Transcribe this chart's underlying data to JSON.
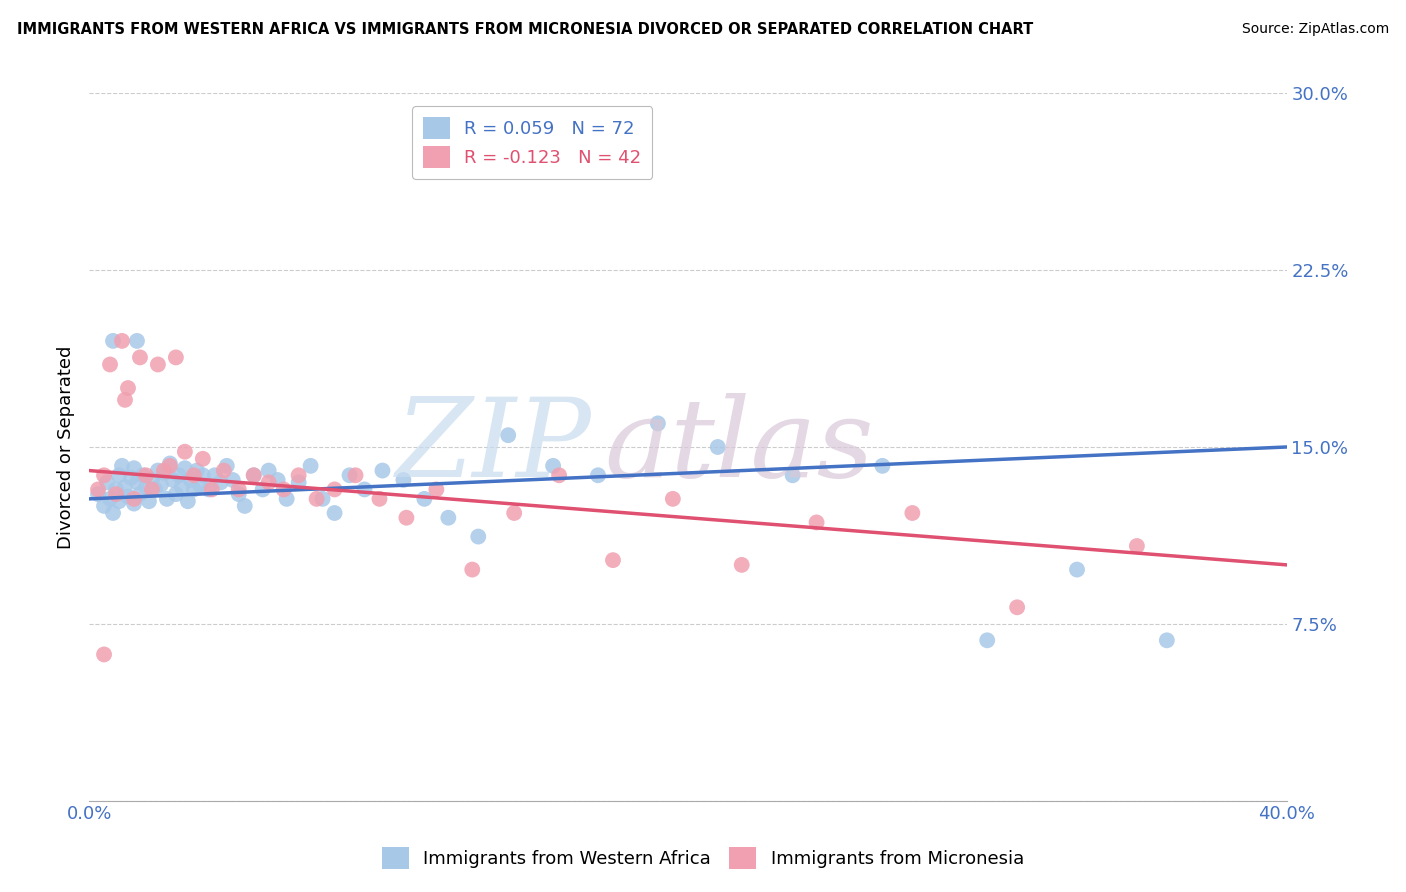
{
  "title": "IMMIGRANTS FROM WESTERN AFRICA VS IMMIGRANTS FROM MICRONESIA DIVORCED OR SEPARATED CORRELATION CHART",
  "source": "Source: ZipAtlas.com",
  "ylabel": "Divorced or Separated",
  "xlim": [
    0.0,
    0.4
  ],
  "ylim": [
    0.0,
    0.3
  ],
  "yticks": [
    0.0,
    0.075,
    0.15,
    0.225,
    0.3
  ],
  "ytick_labels": [
    "",
    "7.5%",
    "15.0%",
    "22.5%",
    "30.0%"
  ],
  "xticks": [
    0.0,
    0.4
  ],
  "xtick_labels": [
    "0.0%",
    "40.0%"
  ],
  "blue_color": "#a8c8e8",
  "pink_color": "#f0a0b0",
  "blue_line_color": "#4472c4",
  "pink_line_color": "#e05070",
  "blue_R": 0.059,
  "blue_N": 72,
  "pink_R": -0.123,
  "pink_N": 42,
  "legend_label_blue": "Immigrants from Western Africa",
  "legend_label_pink": "Immigrants from Micronesia",
  "blue_scatter_x": [
    0.003,
    0.005,
    0.006,
    0.007,
    0.008,
    0.009,
    0.01,
    0.01,
    0.011,
    0.012,
    0.013,
    0.014,
    0.015,
    0.015,
    0.016,
    0.017,
    0.018,
    0.019,
    0.02,
    0.021,
    0.022,
    0.023,
    0.024,
    0.025,
    0.026,
    0.027,
    0.028,
    0.029,
    0.03,
    0.031,
    0.032,
    0.033,
    0.034,
    0.035,
    0.036,
    0.037,
    0.038,
    0.04,
    0.042,
    0.044,
    0.046,
    0.048,
    0.05,
    0.052,
    0.055,
    0.058,
    0.06,
    0.063,
    0.066,
    0.07,
    0.074,
    0.078,
    0.082,
    0.087,
    0.092,
    0.098,
    0.105,
    0.112,
    0.12,
    0.13,
    0.14,
    0.155,
    0.17,
    0.19,
    0.21,
    0.235,
    0.265,
    0.3,
    0.33,
    0.36,
    0.008,
    0.016
  ],
  "blue_scatter_y": [
    0.13,
    0.125,
    0.135,
    0.128,
    0.122,
    0.132,
    0.138,
    0.127,
    0.142,
    0.133,
    0.129,
    0.137,
    0.141,
    0.126,
    0.135,
    0.13,
    0.138,
    0.133,
    0.127,
    0.136,
    0.132,
    0.14,
    0.134,
    0.139,
    0.128,
    0.143,
    0.136,
    0.13,
    0.138,
    0.133,
    0.141,
    0.127,
    0.136,
    0.132,
    0.14,
    0.134,
    0.138,
    0.132,
    0.138,
    0.135,
    0.142,
    0.136,
    0.13,
    0.125,
    0.138,
    0.132,
    0.14,
    0.136,
    0.128,
    0.135,
    0.142,
    0.128,
    0.122,
    0.138,
    0.132,
    0.14,
    0.136,
    0.128,
    0.12,
    0.112,
    0.155,
    0.142,
    0.138,
    0.16,
    0.15,
    0.138,
    0.142,
    0.068,
    0.098,
    0.068,
    0.195,
    0.195
  ],
  "pink_scatter_x": [
    0.003,
    0.005,
    0.007,
    0.009,
    0.011,
    0.013,
    0.015,
    0.017,
    0.019,
    0.021,
    0.023,
    0.025,
    0.027,
    0.029,
    0.032,
    0.035,
    0.038,
    0.041,
    0.045,
    0.05,
    0.055,
    0.06,
    0.065,
    0.07,
    0.076,
    0.082,
    0.089,
    0.097,
    0.106,
    0.116,
    0.128,
    0.142,
    0.157,
    0.175,
    0.195,
    0.218,
    0.243,
    0.275,
    0.31,
    0.35,
    0.005,
    0.012
  ],
  "pink_scatter_y": [
    0.132,
    0.138,
    0.185,
    0.13,
    0.195,
    0.175,
    0.128,
    0.188,
    0.138,
    0.132,
    0.185,
    0.14,
    0.142,
    0.188,
    0.148,
    0.138,
    0.145,
    0.132,
    0.14,
    0.132,
    0.138,
    0.135,
    0.132,
    0.138,
    0.128,
    0.132,
    0.138,
    0.128,
    0.12,
    0.132,
    0.098,
    0.122,
    0.138,
    0.102,
    0.128,
    0.1,
    0.118,
    0.122,
    0.082,
    0.108,
    0.062,
    0.17
  ]
}
